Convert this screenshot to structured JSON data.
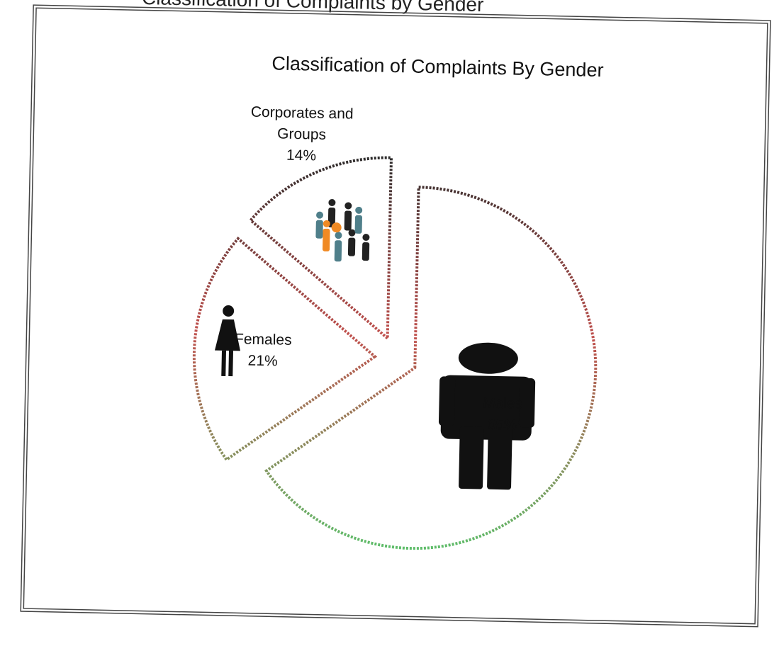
{
  "chart_data": {
    "type": "pie",
    "caption": "Classification of Complaints by Gender",
    "title": "Classification  of Complaints By  Gender",
    "categories": [
      "Males",
      "Females",
      "Corporates and Groups"
    ],
    "values": [
      65,
      21,
      14
    ],
    "value_labels": [
      "65%",
      "21%",
      "14%"
    ],
    "exploded": true
  }
}
